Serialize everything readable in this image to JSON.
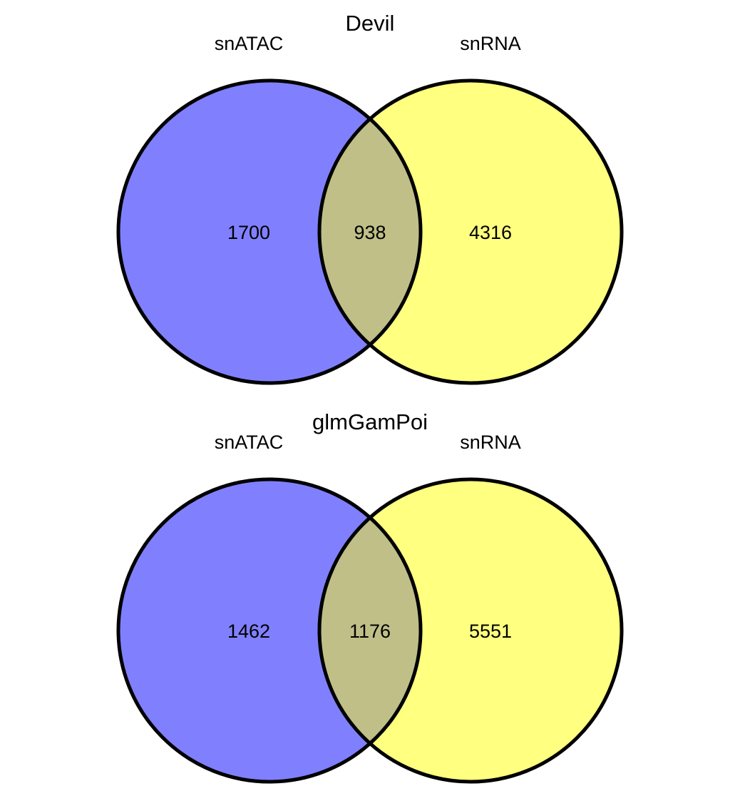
{
  "colors": {
    "set_a": "#8080FF",
    "set_b": "#FFFF80",
    "overlap": "#C0BF88",
    "outline": "#000000",
    "background": "#FFFFFF"
  },
  "diagrams": [
    {
      "title": "Devil",
      "set_a_label": "snATAC",
      "set_b_label": "snRNA",
      "only_a": "1700",
      "both": "938",
      "only_b": "4316"
    },
    {
      "title": "glmGamPoi",
      "set_a_label": "snATAC",
      "set_b_label": "snRNA",
      "only_a": "1462",
      "both": "1176",
      "only_b": "5551"
    }
  ]
}
